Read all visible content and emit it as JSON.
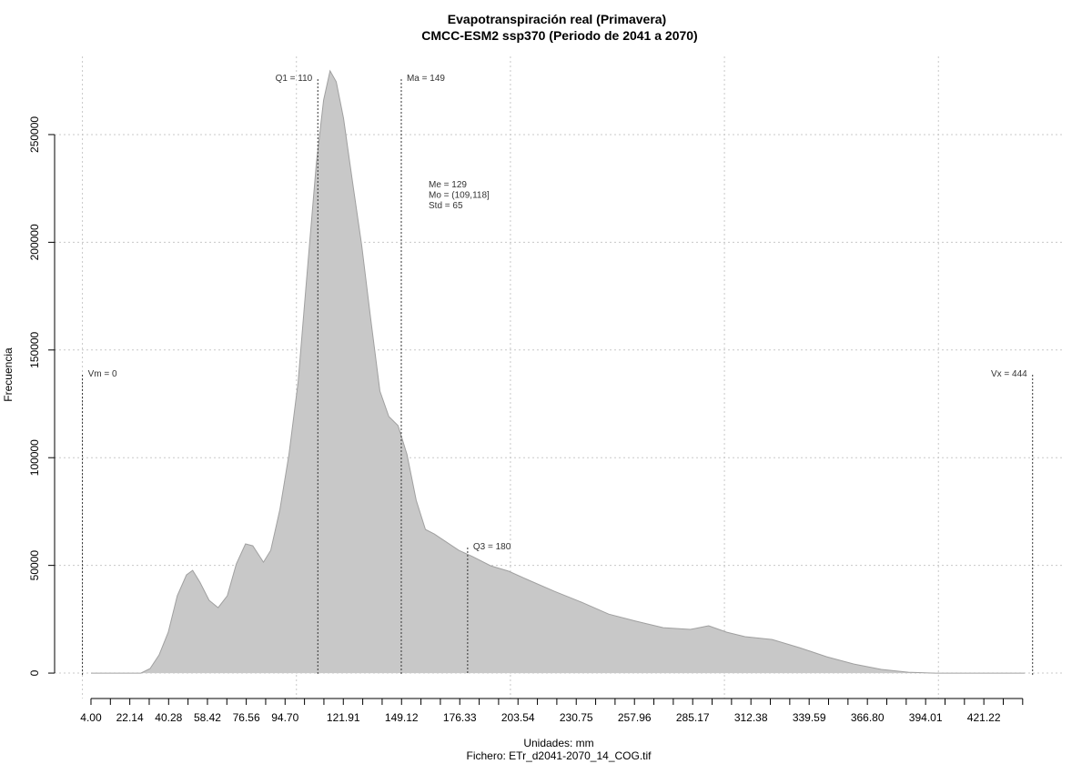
{
  "chart_data": {
    "type": "area",
    "title": "Evapotranspiración real (Primavera)",
    "subtitle": "CMCC-ESM2 ssp370 (Periodo de 2041 a 2070)",
    "xlabel": "Unidades: mm",
    "caption": "Fichero: ETr_d2041-2070_14_COG.tif",
    "ylabel": "Frecuencia",
    "color": "#c8c8c8",
    "x": [
      4,
      27.3,
      31.6,
      35.8,
      40.1,
      44.3,
      48.6,
      51.5,
      54.9,
      59.2,
      63.4,
      67.7,
      71.9,
      76.2,
      79.6,
      84.6,
      88.0,
      92.3,
      96.5,
      100.8,
      105.0,
      109.3,
      112.7,
      115.7,
      118.6,
      122.0,
      126.2,
      130.5,
      134.7,
      139.0,
      143.2,
      147.5,
      151.7,
      156.0,
      160.3,
      164.4,
      169.5,
      175.9,
      182.3,
      190.8,
      199.2,
      207.7,
      220.5,
      233.2,
      245.9,
      258.7,
      271.4,
      284.1,
      292.6,
      301.1,
      309.6,
      322.3,
      335.1,
      347.8,
      360.5,
      373.3,
      386.0,
      398.7,
      440.3
    ],
    "values": [
      0,
      0,
      2100,
      8400,
      19000,
      35900,
      45600,
      47700,
      42200,
      33800,
      30400,
      35900,
      50700,
      60000,
      59100,
      51500,
      57000,
      76000,
      101400,
      135100,
      185800,
      236500,
      266000,
      279600,
      274500,
      257600,
      228000,
      198500,
      164700,
      130900,
      119100,
      114900,
      101400,
      80200,
      66700,
      64600,
      61200,
      57000,
      54100,
      49800,
      47300,
      43500,
      38000,
      32900,
      27400,
      24100,
      21100,
      20300,
      22000,
      19000,
      16900,
      15600,
      11800,
      7600,
      4200,
      1700,
      400,
      0,
      0
    ],
    "xlim": [
      -13,
      459
    ],
    "ylim": [
      -11800,
      286300
    ],
    "xticks": [
      {
        "value": 4,
        "label": "4.00"
      },
      {
        "value": 22.14,
        "label": "22.14"
      },
      {
        "value": 40.28,
        "label": "40.28"
      },
      {
        "value": 58.42,
        "label": "58.42"
      },
      {
        "value": 76.56,
        "label": "76.56"
      },
      {
        "value": 94.7,
        "label": "94.70"
      },
      {
        "value": 121.91,
        "label": "121.91"
      },
      {
        "value": 149.12,
        "label": "149.12"
      },
      {
        "value": 176.33,
        "label": "176.33"
      },
      {
        "value": 203.54,
        "label": "203.54"
      },
      {
        "value": 230.75,
        "label": "230.75"
      },
      {
        "value": 257.96,
        "label": "257.96"
      },
      {
        "value": 285.17,
        "label": "285.17"
      },
      {
        "value": 312.38,
        "label": "312.38"
      },
      {
        "value": 339.59,
        "label": "339.59"
      },
      {
        "value": 366.8,
        "label": "366.80"
      },
      {
        "value": 394.01,
        "label": "394.01"
      },
      {
        "value": 421.22,
        "label": "421.22"
      }
    ],
    "xminorticks": [
      13.07,
      31.21,
      49.35,
      67.49,
      85.63,
      103.77,
      112.84,
      130.98,
      140.05,
      158.19,
      167.26,
      185.4,
      194.47,
      212.61,
      221.68,
      239.82,
      248.89,
      267.03,
      276.1,
      294.24,
      303.31,
      321.45,
      330.52,
      348.66,
      357.73,
      375.87,
      384.94,
      403.08,
      412.15,
      430.29,
      439.36
    ],
    "xgrid": [
      0,
      100,
      200,
      300,
      400
    ],
    "yticks": [
      0,
      50000,
      100000,
      150000,
      200000,
      250000
    ],
    "grid": true,
    "markers": [
      {
        "label": "Vm = 0",
        "value": 0
      },
      {
        "label": "Q1 = 110",
        "value": 110
      },
      {
        "label": "Ma = 149",
        "value": 149
      },
      {
        "label": "Q3 = 180",
        "value": 180
      },
      {
        "label": "Vx = 444",
        "value": 444
      }
    ],
    "stats": [
      "Me = 129",
      "Mo = (109,118]",
      "Std = 65"
    ]
  }
}
